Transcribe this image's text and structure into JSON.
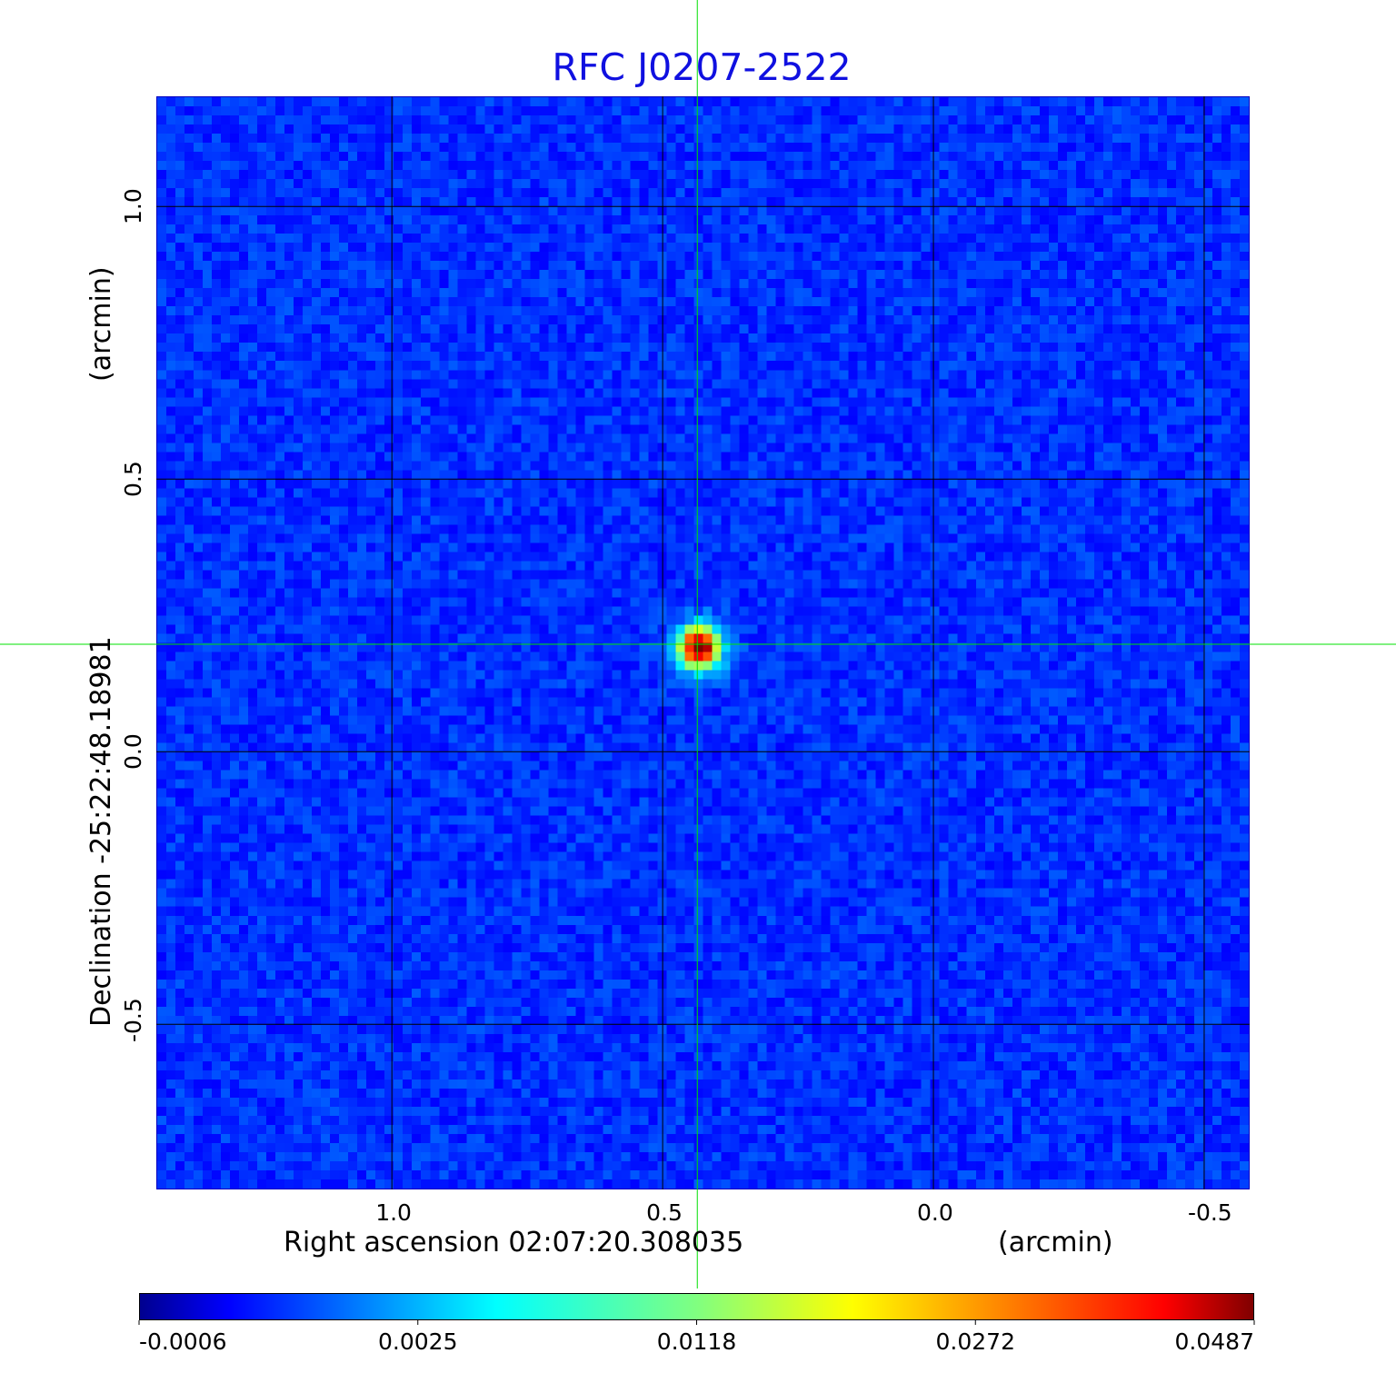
{
  "chart_data": {
    "type": "heatmap",
    "title": "RFC J0207-2522",
    "xlabel": "Right ascension  02:07:20.308035",
    "xunit": "(arcmin)",
    "ylabel": "Declination  -25:22:48.18981",
    "yunit": "(arcmin)",
    "xlim": [
      1.435,
      -0.584
    ],
    "ylim": [
      -0.803,
      1.202
    ],
    "xticks": [
      {
        "v": 1.0,
        "label": "1.0"
      },
      {
        "v": 0.5,
        "label": "0.5"
      },
      {
        "v": 0.0,
        "label": "0.0"
      },
      {
        "v": -0.5,
        "label": "-0.5"
      }
    ],
    "yticks": [
      {
        "v": 1.0,
        "label": "1.0"
      },
      {
        "v": 0.5,
        "label": "0.5"
      },
      {
        "v": 0.0,
        "label": "0.0"
      },
      {
        "v": -0.5,
        "label": "-0.5"
      }
    ],
    "grid": true,
    "colormap": "jet",
    "crosshair": {
      "x": 0.436,
      "y": 0.197,
      "color": "#00e000"
    },
    "source": {
      "x": 0.44,
      "y": 0.2,
      "peak": 0.0487
    },
    "colorbar": {
      "ticks": [
        "-0.0006",
        "0.0025",
        "0.0118",
        "0.0272",
        "0.0487"
      ],
      "min": -0.0006,
      "max": 0.0487
    },
    "title_color": "#1010e0"
  }
}
